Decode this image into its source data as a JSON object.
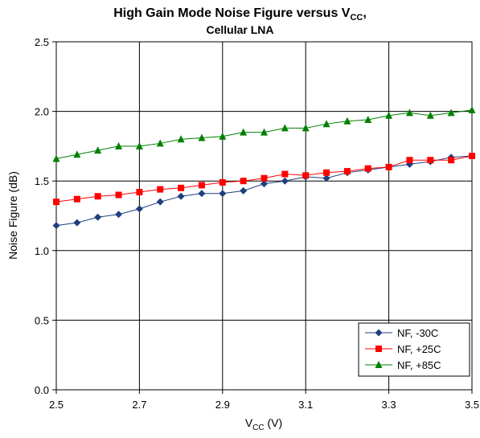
{
  "chart_data": {
    "type": "line",
    "title_main": "High Gain Mode Noise Figure versus V",
    "title_sub": "CC",
    "title_suffix": ",",
    "subtitle": "Cellular LNA",
    "xlabel_main": "V",
    "xlabel_sub": "CC",
    "xlabel_suffix": " (V)",
    "ylabel": "Noise Figure (dB)",
    "xlim": [
      2.5,
      3.5
    ],
    "ylim": [
      0.0,
      2.5
    ],
    "xticks": [
      "2.5",
      "2.7",
      "2.9",
      "3.1",
      "3.3",
      "3.5"
    ],
    "yticks": [
      "0.0",
      "0.5",
      "1.0",
      "1.5",
      "2.0",
      "2.5"
    ],
    "grid": true,
    "legend_position": "bottom-right",
    "x": [
      2.5,
      2.55,
      2.6,
      2.65,
      2.7,
      2.75,
      2.8,
      2.85,
      2.9,
      2.95,
      3.0,
      3.05,
      3.1,
      3.15,
      3.2,
      3.25,
      3.3,
      3.35,
      3.4,
      3.45,
      3.5
    ],
    "series": [
      {
        "name": "NF, -30C",
        "color": "#1f3f7f",
        "marker": "diamond",
        "values": [
          1.18,
          1.2,
          1.24,
          1.26,
          1.3,
          1.35,
          1.39,
          1.41,
          1.41,
          1.43,
          1.48,
          1.5,
          1.53,
          1.52,
          1.56,
          1.58,
          1.6,
          1.62,
          1.64,
          1.67,
          1.68
        ]
      },
      {
        "name": "NF, +25C",
        "color": "#ff0000",
        "marker": "square",
        "values": [
          1.35,
          1.37,
          1.39,
          1.4,
          1.42,
          1.44,
          1.45,
          1.47,
          1.49,
          1.5,
          1.52,
          1.55,
          1.54,
          1.56,
          1.57,
          1.59,
          1.6,
          1.65,
          1.65,
          1.65,
          1.68
        ]
      },
      {
        "name": "NF, +85C",
        "color": "#008000",
        "marker": "triangle",
        "values": [
          1.66,
          1.69,
          1.72,
          1.75,
          1.75,
          1.77,
          1.8,
          1.81,
          1.82,
          1.85,
          1.85,
          1.88,
          1.88,
          1.91,
          1.93,
          1.94,
          1.97,
          1.99,
          1.97,
          1.99,
          2.01
        ]
      }
    ]
  }
}
